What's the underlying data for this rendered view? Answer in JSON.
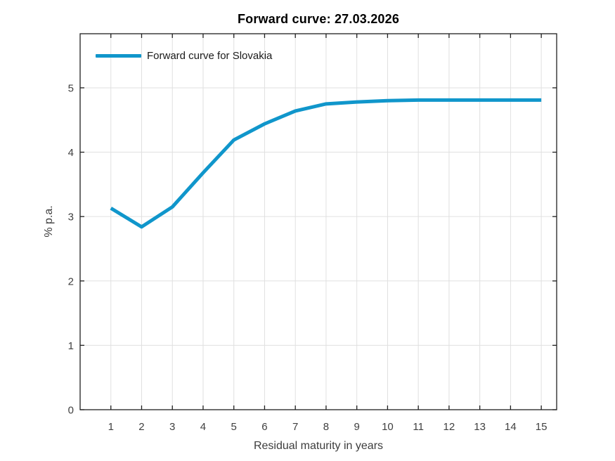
{
  "figure": {
    "background": "#ffffff"
  },
  "chart_data": {
    "type": "line",
    "title": "Forward curve: 27.03.2026",
    "xlabel": "Residual maturity in years",
    "ylabel": "% p.a.",
    "legend_position": "top-left",
    "legend": [
      {
        "label": "Forward curve for Slovakia",
        "color": "#1096cb"
      }
    ],
    "x": [
      1,
      2,
      3,
      4,
      5,
      6,
      7,
      8,
      9,
      10,
      11,
      12,
      13,
      14,
      15
    ],
    "series": [
      {
        "name": "Forward curve for Slovakia",
        "values": [
          3.13,
          2.84,
          3.15,
          3.68,
          4.19,
          4.44,
          4.64,
          4.75,
          4.78,
          4.8,
          4.81,
          4.81,
          4.81,
          4.81,
          4.81
        ]
      }
    ],
    "xlim": [
      0,
      15.5
    ],
    "ylim": [
      0,
      5.84
    ],
    "xticks": [
      1,
      2,
      3,
      4,
      5,
      6,
      7,
      8,
      9,
      10,
      11,
      12,
      13,
      14,
      15
    ],
    "yticks": [
      0,
      1,
      2,
      3,
      4,
      5
    ],
    "grid": true,
    "line_color": "#1096cb",
    "line_width": 5,
    "grid_color": "#e0e0e0",
    "axis_color": "#1f1f1f",
    "tick_label_color": "#404040"
  }
}
